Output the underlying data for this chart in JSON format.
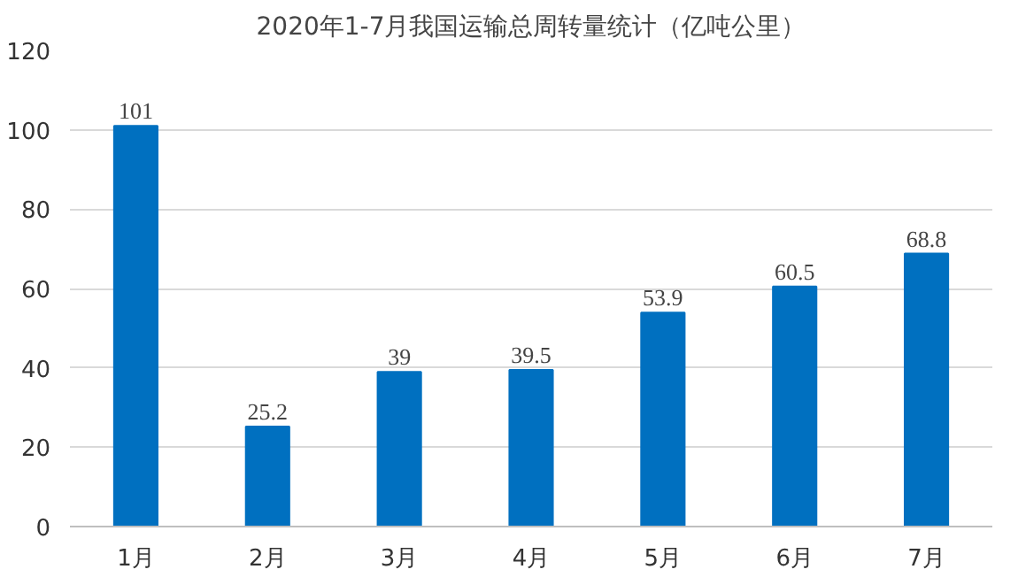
{
  "chart_data": {
    "type": "bar",
    "title": "2020年1-7月我国运输总周转量统计（亿吨公里）",
    "categories": [
      "1月",
      "2月",
      "3月",
      "4月",
      "5月",
      "6月",
      "7月"
    ],
    "values": [
      101,
      25.2,
      39,
      39.5,
      53.9,
      60.5,
      68.8
    ],
    "color": "#0070c0",
    "ylim": [
      0,
      120
    ],
    "yticks": [
      0,
      20,
      40,
      60,
      80,
      100,
      120
    ],
    "grid": "y",
    "data_labels": true
  }
}
